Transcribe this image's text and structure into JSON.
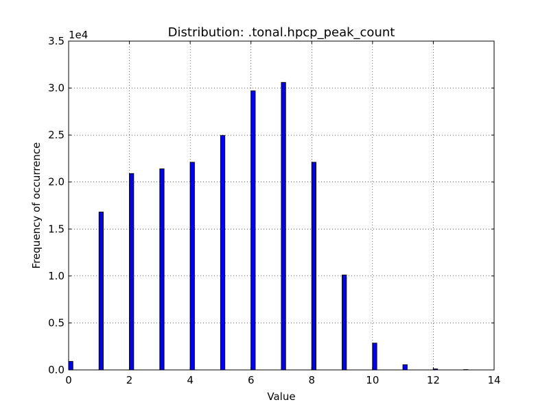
{
  "chart_data": {
    "type": "bar",
    "title": "Distribution: .tonal.hpcp_peak_count",
    "xlabel": "Value",
    "ylabel": "Frequency of occurrence",
    "y_multiplier_label": "1e4",
    "y_multiplier": 10000,
    "xlim": [
      0,
      14
    ],
    "ylim": [
      0,
      35000
    ],
    "x_ticks": [
      0,
      2,
      4,
      6,
      8,
      10,
      12,
      14
    ],
    "y_ticks": [
      0,
      5000,
      10000,
      15000,
      20000,
      25000,
      30000,
      35000
    ],
    "y_tick_labels": [
      "0.0",
      "0.5",
      "1.0",
      "1.5",
      "2.0",
      "2.5",
      "3.0",
      "3.5"
    ],
    "grid": true,
    "grid_style": "dotted",
    "bar_color": "#0000ff",
    "bar_edge_color": "#000000",
    "x": [
      0,
      1,
      2,
      3,
      4,
      5,
      6,
      7,
      8,
      9,
      10,
      11,
      12,
      13
    ],
    "values": [
      900,
      16800,
      20900,
      21400,
      22100,
      24950,
      29700,
      30600,
      22100,
      10100,
      2850,
      550,
      100,
      30
    ]
  }
}
